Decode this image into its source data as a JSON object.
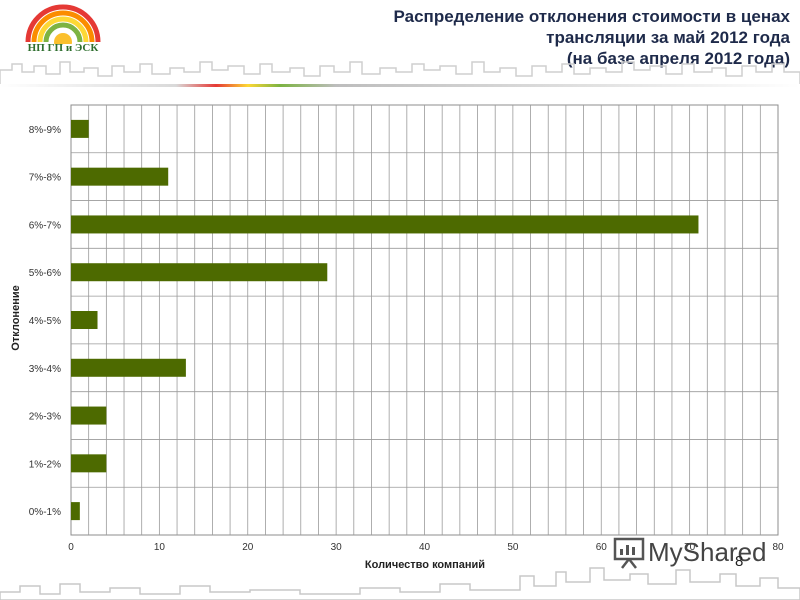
{
  "header": {
    "logo_text": "НП ГП и ЭСК",
    "title_lines": [
      "Распределение отклонения стоимости в ценах",
      "трансляции за май 2012 года",
      "(на базе апреля 2012 года)"
    ]
  },
  "chart_data": {
    "type": "bar",
    "orientation": "horizontal",
    "title": "Распределение отклонения стоимости в ценах трансляции за май 2012 года (на базе апреля 2012 года)",
    "xlabel": "Количество компаний",
    "ylabel": "Отклонение",
    "categories": [
      "0%-1%",
      "1%-2%",
      "2%-3%",
      "3%-4%",
      "4%-5%",
      "5%-6%",
      "6%-7%",
      "7%-8%",
      "8%-9%"
    ],
    "values": [
      1,
      4,
      4,
      13,
      3,
      29,
      71,
      11,
      2
    ],
    "xlim": [
      0,
      80
    ],
    "xticks": [
      0,
      10,
      20,
      30,
      40,
      50,
      60,
      70,
      80
    ],
    "grid": true,
    "bar_color": "#4d6a00",
    "legend": "none"
  },
  "watermark": {
    "text": "MyShared"
  },
  "page_number": "8"
}
